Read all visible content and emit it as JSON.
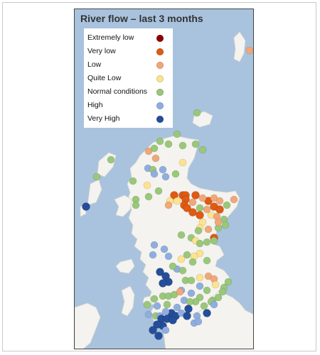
{
  "map": {
    "title": "River flow – last 3 months"
  },
  "legend": [
    {
      "key": "extremely-low",
      "label": "Extremely low",
      "color": "#8b0000"
    },
    {
      "key": "very-low",
      "label": "Very low",
      "color": "#e05a12"
    },
    {
      "key": "low",
      "label": "Low",
      "color": "#f2a777"
    },
    {
      "key": "quite-low",
      "label": "Quite Low",
      "color": "#fde38e"
    },
    {
      "key": "normal",
      "label": "Normal conditions",
      "color": "#99c87a"
    },
    {
      "key": "high",
      "label": "High",
      "color": "#8faee0"
    },
    {
      "key": "very-high",
      "label": "Very High",
      "color": "#254e9a"
    }
  ],
  "colors": {
    "sea": "#a9c3de",
    "land": "#f4f3ef",
    "outline": "#444444"
  },
  "stations": [
    {
      "c": "low"
    },
    {
      "c": "normal"
    },
    {
      "c": "normal"
    },
    {
      "c": "normal"
    },
    {
      "c": "very-high"
    },
    {
      "c": "normal"
    },
    {
      "c": "normal"
    },
    {
      "c": "high"
    },
    {
      "c": "low"
    },
    {
      "c": "normal"
    },
    {
      "c": "normal"
    },
    {
      "c": "normal"
    },
    {
      "c": "normal"
    },
    {
      "c": "normal"
    },
    {
      "c": "low"
    },
    {
      "c": "normal"
    },
    {
      "c": "high"
    },
    {
      "c": "high"
    },
    {
      "c": "normal"
    },
    {
      "c": "high"
    },
    {
      "c": "quite-low"
    },
    {
      "c": "normal"
    },
    {
      "c": "normal"
    },
    {
      "c": "normal"
    },
    {
      "c": "quite-low"
    },
    {
      "c": "normal"
    },
    {
      "c": "normal"
    },
    {
      "c": "very-low"
    },
    {
      "c": "quite-low"
    },
    {
      "c": "quite-low"
    },
    {
      "c": "very-low"
    },
    {
      "c": "very-low"
    },
    {
      "c": "very-low"
    },
    {
      "c": "very-low"
    },
    {
      "c": "low"
    },
    {
      "c": "very-low"
    },
    {
      "c": "low"
    },
    {
      "c": "low"
    },
    {
      "c": "low"
    },
    {
      "c": "low"
    },
    {
      "c": "normal"
    },
    {
      "c": "normal"
    },
    {
      "c": "low"
    },
    {
      "c": "very-low"
    },
    {
      "c": "very-low"
    },
    {
      "c": "very-low"
    },
    {
      "c": "very-low"
    },
    {
      "c": "low"
    },
    {
      "c": "very-low"
    },
    {
      "c": "very-low"
    },
    {
      "c": "quite-low"
    },
    {
      "c": "low"
    },
    {
      "c": "normal"
    },
    {
      "c": "normal"
    },
    {
      "c": "normal"
    },
    {
      "c": "low"
    },
    {
      "c": "quite-low"
    },
    {
      "c": "quite-low"
    },
    {
      "c": "low"
    },
    {
      "c": "normal"
    },
    {
      "c": "very-low"
    },
    {
      "c": "normal"
    },
    {
      "c": "normal"
    },
    {
      "c": "normal"
    },
    {
      "c": "normal"
    },
    {
      "c": "quite-low"
    },
    {
      "c": "normal"
    },
    {
      "c": "quite-low"
    },
    {
      "c": "normal"
    },
    {
      "c": "high"
    },
    {
      "c": "high"
    },
    {
      "c": "high"
    },
    {
      "c": "high"
    },
    {
      "c": "quite-low"
    },
    {
      "c": "normal"
    },
    {
      "c": "normal"
    },
    {
      "c": "quite-low"
    },
    {
      "c": "very-high"
    },
    {
      "c": "very-high"
    },
    {
      "c": "high"
    },
    {
      "c": "normal"
    },
    {
      "c": "normal"
    },
    {
      "c": "normal"
    },
    {
      "c": "normal"
    },
    {
      "c": "quite-low"
    },
    {
      "c": "low"
    },
    {
      "c": "low"
    },
    {
      "c": "quite-low"
    },
    {
      "c": "high"
    },
    {
      "c": "very-high"
    },
    {
      "c": "very-high"
    },
    {
      "c": "normal"
    },
    {
      "c": "normal"
    },
    {
      "c": "normal"
    },
    {
      "c": "normal"
    },
    {
      "c": "normal"
    },
    {
      "c": "normal"
    },
    {
      "c": "high"
    },
    {
      "c": "normal"
    },
    {
      "c": "normal"
    },
    {
      "c": "normal"
    },
    {
      "c": "normal"
    },
    {
      "c": "low"
    },
    {
      "c": "high"
    },
    {
      "c": "high"
    },
    {
      "c": "normal"
    },
    {
      "c": "normal"
    },
    {
      "c": "normal"
    },
    {
      "c": "normal"
    },
    {
      "c": "normal"
    },
    {
      "c": "high"
    },
    {
      "c": "normal"
    },
    {
      "c": "high"
    },
    {
      "c": "normal"
    },
    {
      "c": "high"
    },
    {
      "c": "normal"
    },
    {
      "c": "very-high"
    },
    {
      "c": "very-high"
    },
    {
      "c": "high"
    },
    {
      "c": "high"
    },
    {
      "c": "high"
    },
    {
      "c": "very-high"
    },
    {
      "c": "high"
    },
    {
      "c": "very-high"
    },
    {
      "c": "very-high"
    },
    {
      "c": "very-high"
    },
    {
      "c": "very-high"
    },
    {
      "c": "high"
    },
    {
      "c": "very-high"
    },
    {
      "c": "very-high"
    },
    {
      "c": "high"
    },
    {
      "c": "very-high"
    },
    {
      "c": "very-high"
    },
    {
      "c": "high"
    },
    {
      "c": "very-high"
    },
    {
      "c": "high"
    }
  ]
}
